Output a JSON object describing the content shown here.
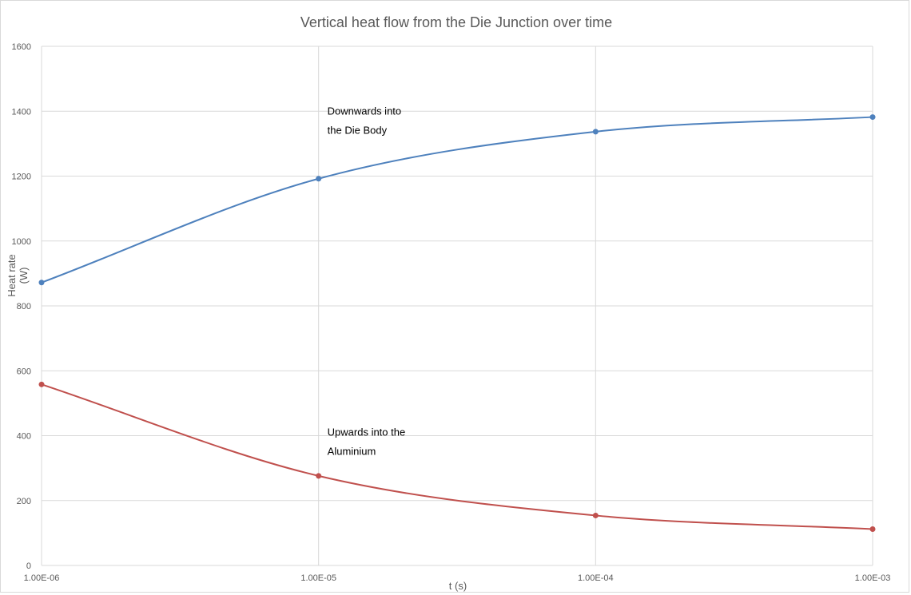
{
  "chart_data": {
    "type": "line",
    "title": "Vertical heat flow from the Die Junction over time",
    "xlabel": "t (s)",
    "ylabel_lines": [
      "Heat rate",
      "(W)"
    ],
    "x_scale": "log",
    "x": [
      1e-06,
      1e-05,
      0.0001,
      0.001
    ],
    "x_tick_labels": [
      "1.00E-06",
      "1.00E-05",
      "1.00E-04",
      "1.00E-03"
    ],
    "ylim": [
      0,
      1600
    ],
    "y_ticks": [
      0,
      200,
      400,
      600,
      800,
      1000,
      1200,
      1400,
      1600
    ],
    "grid": true,
    "series": [
      {
        "values": [
          872,
          1192,
          1337,
          1382
        ],
        "color": "#4e81bd"
      },
      {
        "values": [
          558,
          276,
          154,
          112
        ],
        "color": "#c0504d"
      }
    ],
    "annotations": [
      {
        "lines": [
          "Downwards into",
          "the Die Body"
        ],
        "x": 1e-05,
        "y": 1390
      },
      {
        "lines": [
          "Upwards into the",
          "Aluminium"
        ],
        "x": 1e-05,
        "y": 400
      }
    ]
  }
}
